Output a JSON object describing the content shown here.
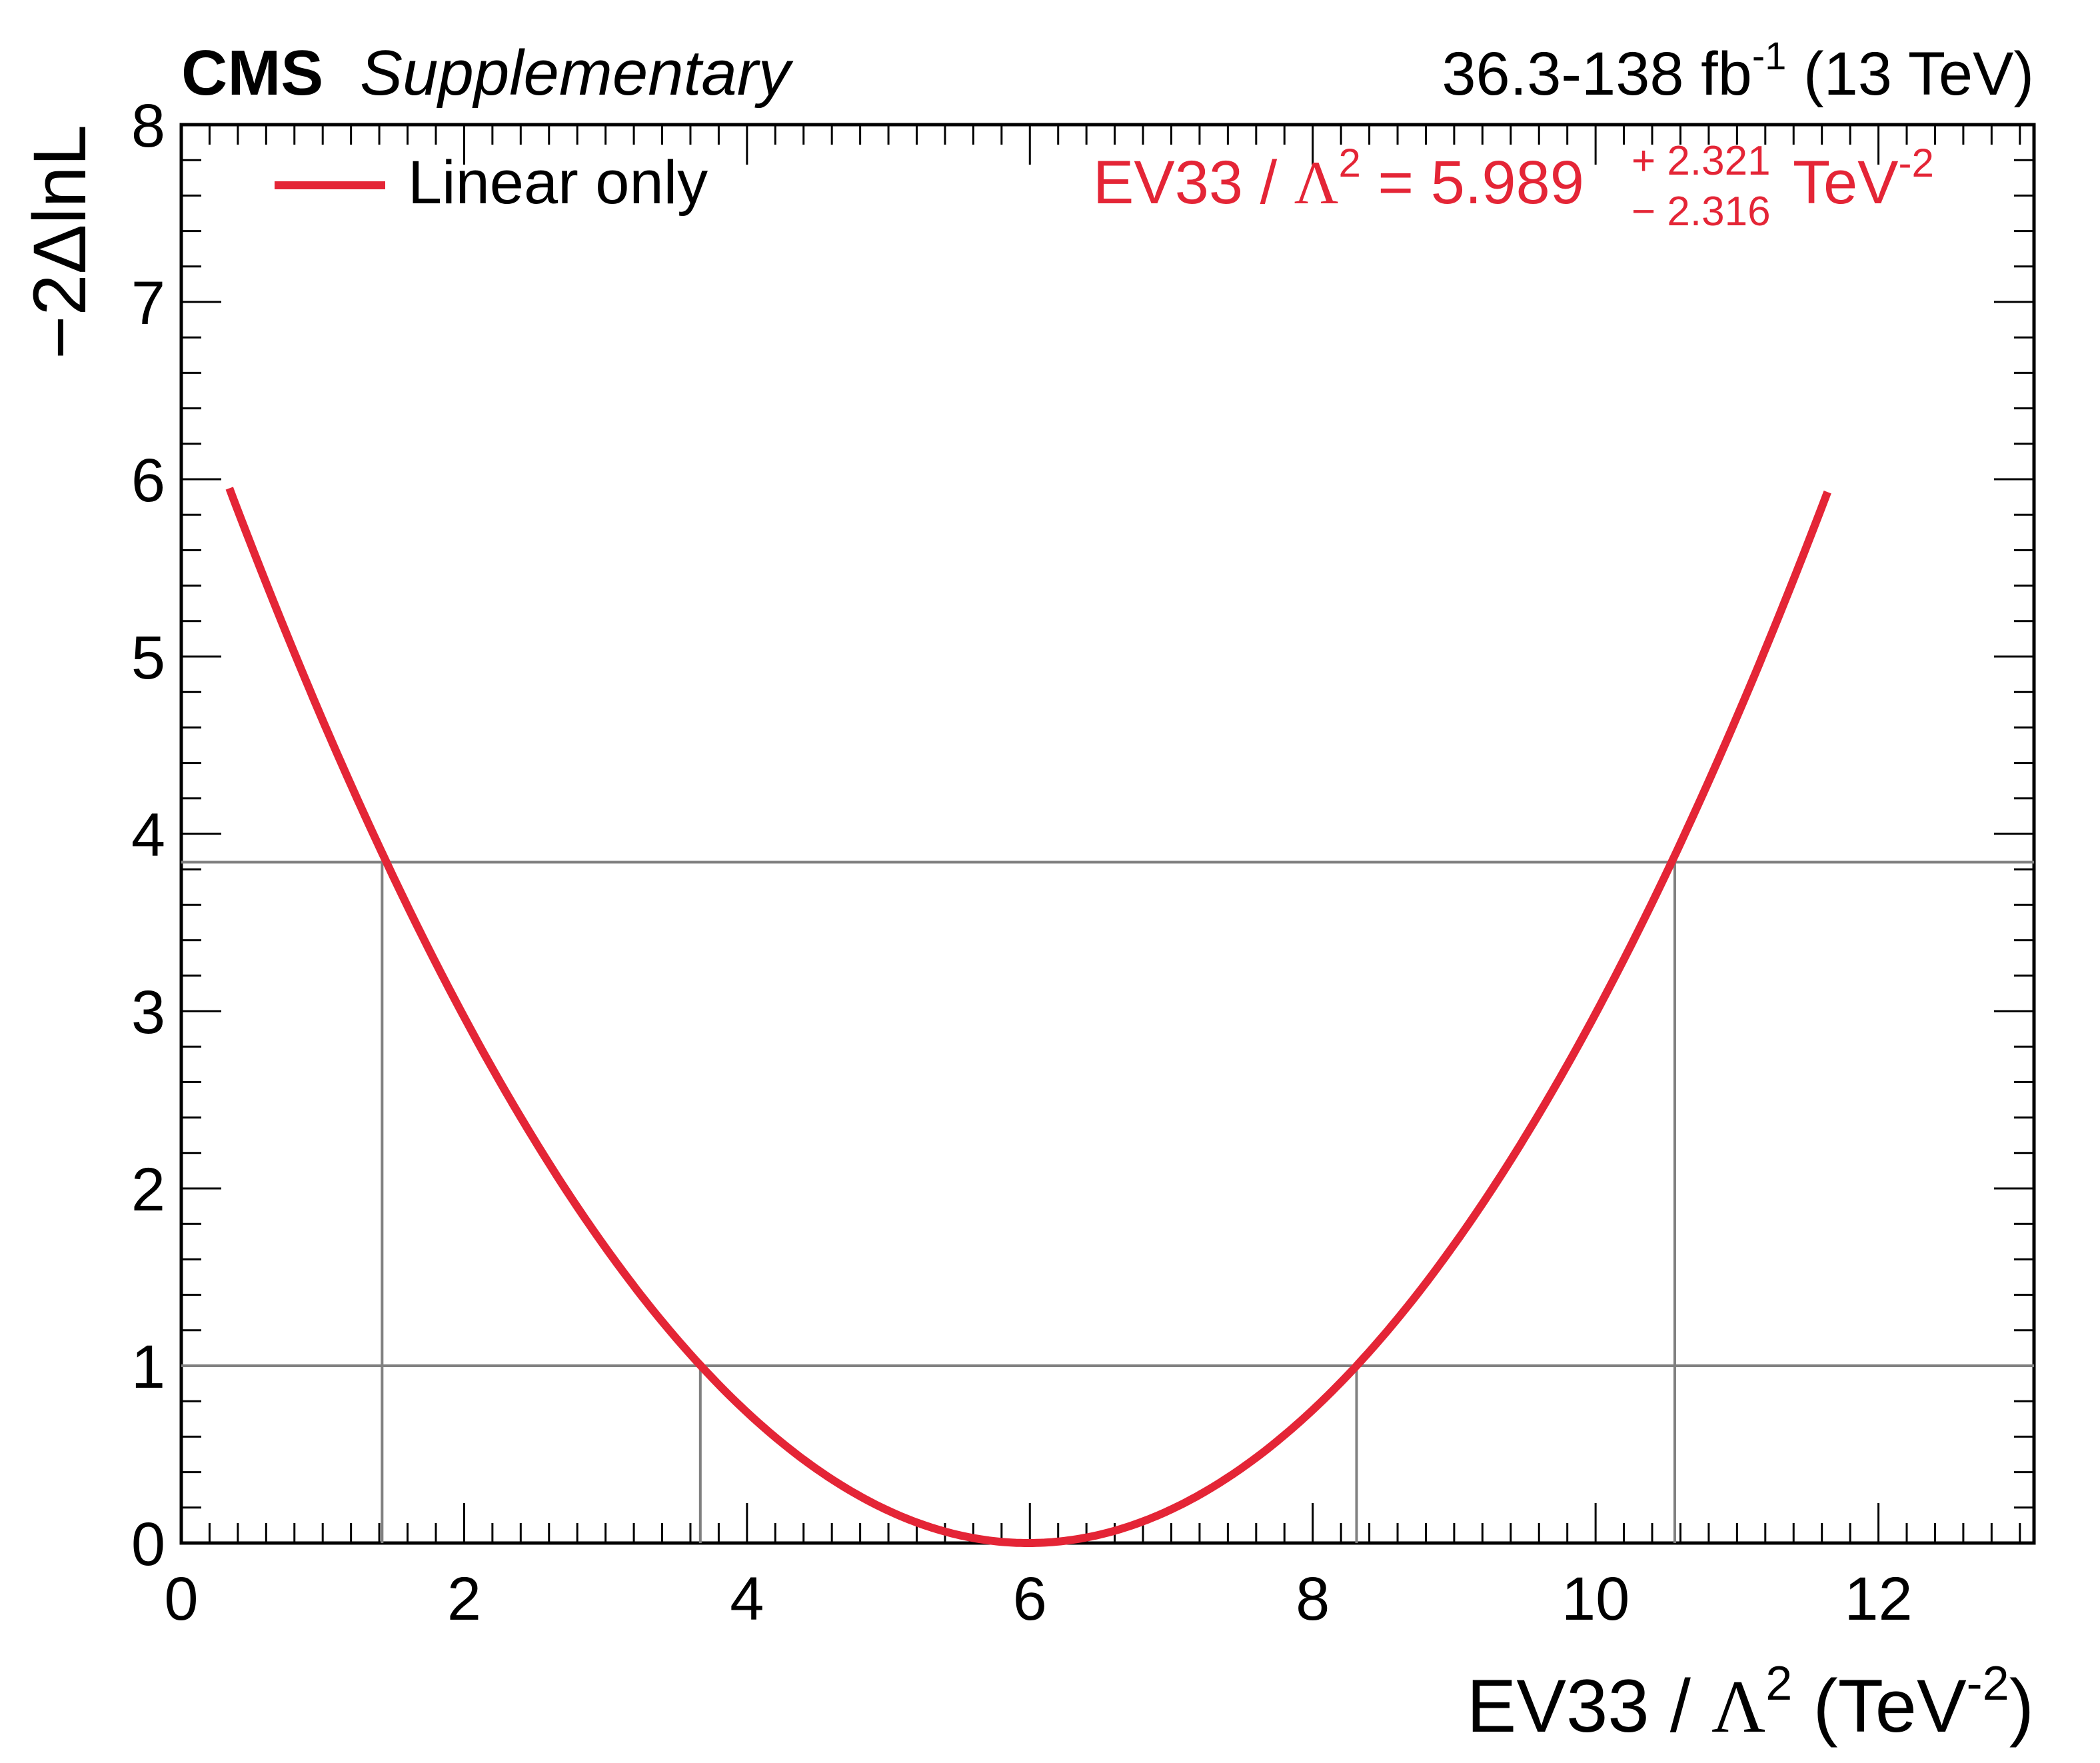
{
  "header": {
    "experiment": "CMS",
    "status": "Supplementary",
    "lumi_value": "36.3-138 fb",
    "lumi_exponent": "-1",
    "energy": "(13 TeV)"
  },
  "legend": {
    "entries": [
      {
        "label": "Linear only",
        "color": "#e42536"
      }
    ]
  },
  "result": {
    "parameter": "EV33",
    "separator": " / ",
    "scale_symbol": "Λ",
    "scale_exponent": "2",
    "equals": " = ",
    "value": "5.989",
    "err_up": "+ 2.321",
    "err_down": "− 2.316",
    "unit": "TeV",
    "unit_exponent": "-2",
    "color": "#e42536"
  },
  "axes": {
    "xlabel_main": "EV33 / ",
    "xlabel_symbol": "Λ",
    "xlabel_symbol_exp": "2",
    "xlabel_unit_open": " (TeV",
    "xlabel_unit_exp": "-2",
    "xlabel_close": ")",
    "ylabel": "−2ΔlnL",
    "x_ticks": [
      "0",
      "2",
      "4",
      "6",
      "8",
      "10",
      "12"
    ],
    "y_ticks": [
      "0",
      "1",
      "2",
      "3",
      "4",
      "5",
      "6",
      "7",
      "8"
    ]
  },
  "chart_data": {
    "type": "line",
    "xlim": [
      0,
      13.1
    ],
    "ylim": [
      0,
      8
    ],
    "x_major_ticks": [
      0,
      2,
      4,
      6,
      8,
      10,
      12
    ],
    "y_major_ticks": [
      0,
      1,
      2,
      3,
      4,
      5,
      6,
      7,
      8
    ],
    "grid": false,
    "legend_position": "top-left",
    "series": [
      {
        "name": "Linear only",
        "color": "#e42536",
        "shape": "parabola",
        "x": [
          0.34,
          1.0,
          1.42,
          2.0,
          3.0,
          3.67,
          4.5,
          5.0,
          5.989,
          7.0,
          7.5,
          8.31,
          9.0,
          10.0,
          10.56,
          11.0,
          11.64
        ],
        "y": [
          5.94,
          4.46,
          3.84,
          2.94,
          1.68,
          1.0,
          0.41,
          0.18,
          0.0,
          0.19,
          0.43,
          1.0,
          1.68,
          2.99,
          3.84,
          4.61,
          5.87
        ]
      }
    ],
    "reference_levels": [
      {
        "y": 1,
        "x_crossings": [
          3.67,
          8.31
        ]
      },
      {
        "y": 3.84,
        "x_crossings": [
          1.42,
          10.56
        ]
      }
    ],
    "reference_color": "#808080"
  }
}
